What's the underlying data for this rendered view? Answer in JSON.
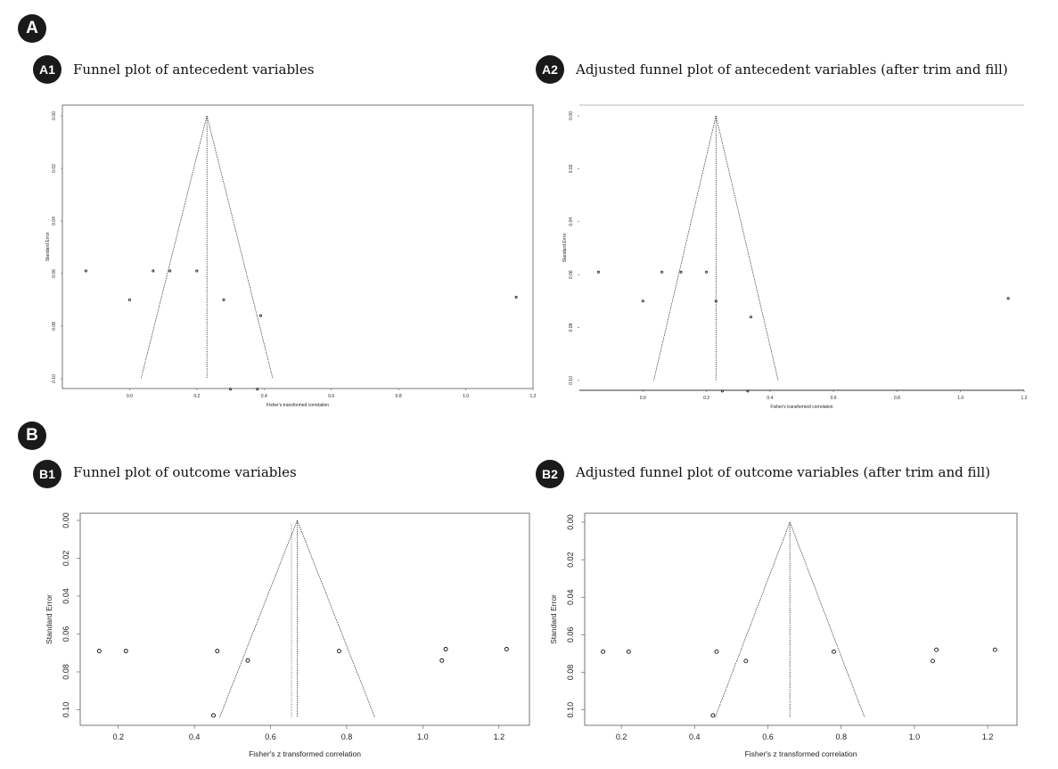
{
  "sections": [
    {
      "label": "A"
    },
    {
      "label": "B"
    }
  ],
  "panels": [
    {
      "badge": "A1",
      "title": "Funnel plot of antecedent variables"
    },
    {
      "badge": "A2",
      "title": "Adjusted funnel plot of antecedent variables (after trim and fill)"
    },
    {
      "badge": "B1",
      "title": "Funnel plot of outcome variables"
    },
    {
      "badge": "B2",
      "title": "Adjusted funnel plot of outcome variables (after trim and fill)"
    }
  ],
  "chart_data": [
    {
      "id": "A1",
      "type": "scatter",
      "xlabel": "Fisher's transformed correlation",
      "ylabel": "Standard Error",
      "xlim": [
        -0.2,
        1.2
      ],
      "ylim": [
        0.1,
        0.0
      ],
      "xticks": [
        0.0,
        0.2,
        0.4,
        0.6,
        0.8,
        1.0,
        1.2
      ],
      "xtick_labels": [
        "0.0",
        "0.2",
        "0.4",
        "0.6",
        "0.8",
        "1.0",
        "1.2"
      ],
      "yticks": [
        0.0,
        0.02,
        0.04,
        0.06,
        0.08,
        0.1
      ],
      "ytick_labels": [
        "0.00",
        "0.02",
        "0.04",
        "0.06",
        "0.08",
        "0.10"
      ],
      "center": 0.23,
      "funnel": true,
      "points": [
        {
          "x": -0.13,
          "y": 0.059
        },
        {
          "x": 0.0,
          "y": 0.07
        },
        {
          "x": 0.07,
          "y": 0.059
        },
        {
          "x": 0.12,
          "y": 0.059
        },
        {
          "x": 0.2,
          "y": 0.059
        },
        {
          "x": 0.28,
          "y": 0.07
        },
        {
          "x": 0.3,
          "y": 0.104
        },
        {
          "x": 0.38,
          "y": 0.104
        },
        {
          "x": 0.39,
          "y": 0.076
        },
        {
          "x": 1.15,
          "y": 0.069
        }
      ]
    },
    {
      "id": "A2",
      "type": "scatter",
      "xlabel": "Fisher's transformed correlation",
      "ylabel": "Standard Error",
      "xlim": [
        -0.2,
        1.2
      ],
      "ylim": [
        0.1,
        0.0
      ],
      "xticks": [
        0.0,
        0.2,
        0.4,
        0.6,
        0.8,
        1.0,
        1.2
      ],
      "xtick_labels": [
        "0.0",
        "0.2",
        "0.4",
        "0.6",
        "0.8",
        "1.0",
        "1.2"
      ],
      "yticks": [
        0.0,
        0.02,
        0.04,
        0.06,
        0.08,
        0.1
      ],
      "ytick_labels": [
        "0.00",
        "0.02",
        "0.04",
        "0.06",
        "0.08",
        "0.10"
      ],
      "center": 0.23,
      "funnel": true,
      "points": [
        {
          "x": -0.14,
          "y": 0.059
        },
        {
          "x": 0.0,
          "y": 0.07
        },
        {
          "x": 0.06,
          "y": 0.059
        },
        {
          "x": 0.12,
          "y": 0.059
        },
        {
          "x": 0.2,
          "y": 0.059
        },
        {
          "x": 0.23,
          "y": 0.07
        },
        {
          "x": 0.25,
          "y": 0.104
        },
        {
          "x": 0.33,
          "y": 0.104
        },
        {
          "x": 0.34,
          "y": 0.076
        },
        {
          "x": 1.15,
          "y": 0.069
        }
      ]
    },
    {
      "id": "B1",
      "type": "scatter",
      "xlabel": "Fisher's z transformed correlation",
      "ylabel": "Standard Error",
      "xlim": [
        0.1,
        1.28
      ],
      "ylim": [
        0.104,
        0.0
      ],
      "xticks": [
        0.2,
        0.4,
        0.6,
        0.8,
        1.0,
        1.2
      ],
      "xtick_labels": [
        "0.2",
        "0.4",
        "0.6",
        "0.8",
        "1.0",
        "1.2"
      ],
      "yticks": [
        0.0,
        0.02,
        0.04,
        0.06,
        0.08,
        0.1
      ],
      "ytick_labels": [
        "0.00",
        "0.02",
        "0.04",
        "0.06",
        "0.08",
        "0.10"
      ],
      "center": 0.67,
      "center_dotted": 0.655,
      "funnel": true,
      "points": [
        {
          "x": 0.15,
          "y": 0.069
        },
        {
          "x": 0.22,
          "y": 0.069
        },
        {
          "x": 0.45,
          "y": 0.103
        },
        {
          "x": 0.46,
          "y": 0.069
        },
        {
          "x": 0.54,
          "y": 0.074
        },
        {
          "x": 0.78,
          "y": 0.069
        },
        {
          "x": 1.05,
          "y": 0.074
        },
        {
          "x": 1.06,
          "y": 0.068
        },
        {
          "x": 1.22,
          "y": 0.068
        }
      ]
    },
    {
      "id": "B2",
      "type": "scatter",
      "xlabel": "Fisher's z transformed correlation",
      "ylabel": "Standard Error",
      "xlim": [
        0.1,
        1.28
      ],
      "ylim": [
        0.104,
        0.0
      ],
      "xticks": [
        0.2,
        0.4,
        0.6,
        0.8,
        1.0,
        1.2
      ],
      "xtick_labels": [
        "0.2",
        "0.4",
        "0.6",
        "0.8",
        "1.0",
        "1.2"
      ],
      "yticks": [
        0.0,
        0.02,
        0.04,
        0.06,
        0.08,
        0.1
      ],
      "ytick_labels": [
        "0.00",
        "0.02",
        "0.04",
        "0.06",
        "0.08",
        "0.10"
      ],
      "center": 0.66,
      "funnel": true,
      "points": [
        {
          "x": 0.15,
          "y": 0.069
        },
        {
          "x": 0.22,
          "y": 0.069
        },
        {
          "x": 0.45,
          "y": 0.103
        },
        {
          "x": 0.46,
          "y": 0.069
        },
        {
          "x": 0.54,
          "y": 0.074
        },
        {
          "x": 0.78,
          "y": 0.069
        },
        {
          "x": 1.05,
          "y": 0.074
        },
        {
          "x": 1.06,
          "y": 0.068
        },
        {
          "x": 1.22,
          "y": 0.068
        }
      ]
    }
  ]
}
